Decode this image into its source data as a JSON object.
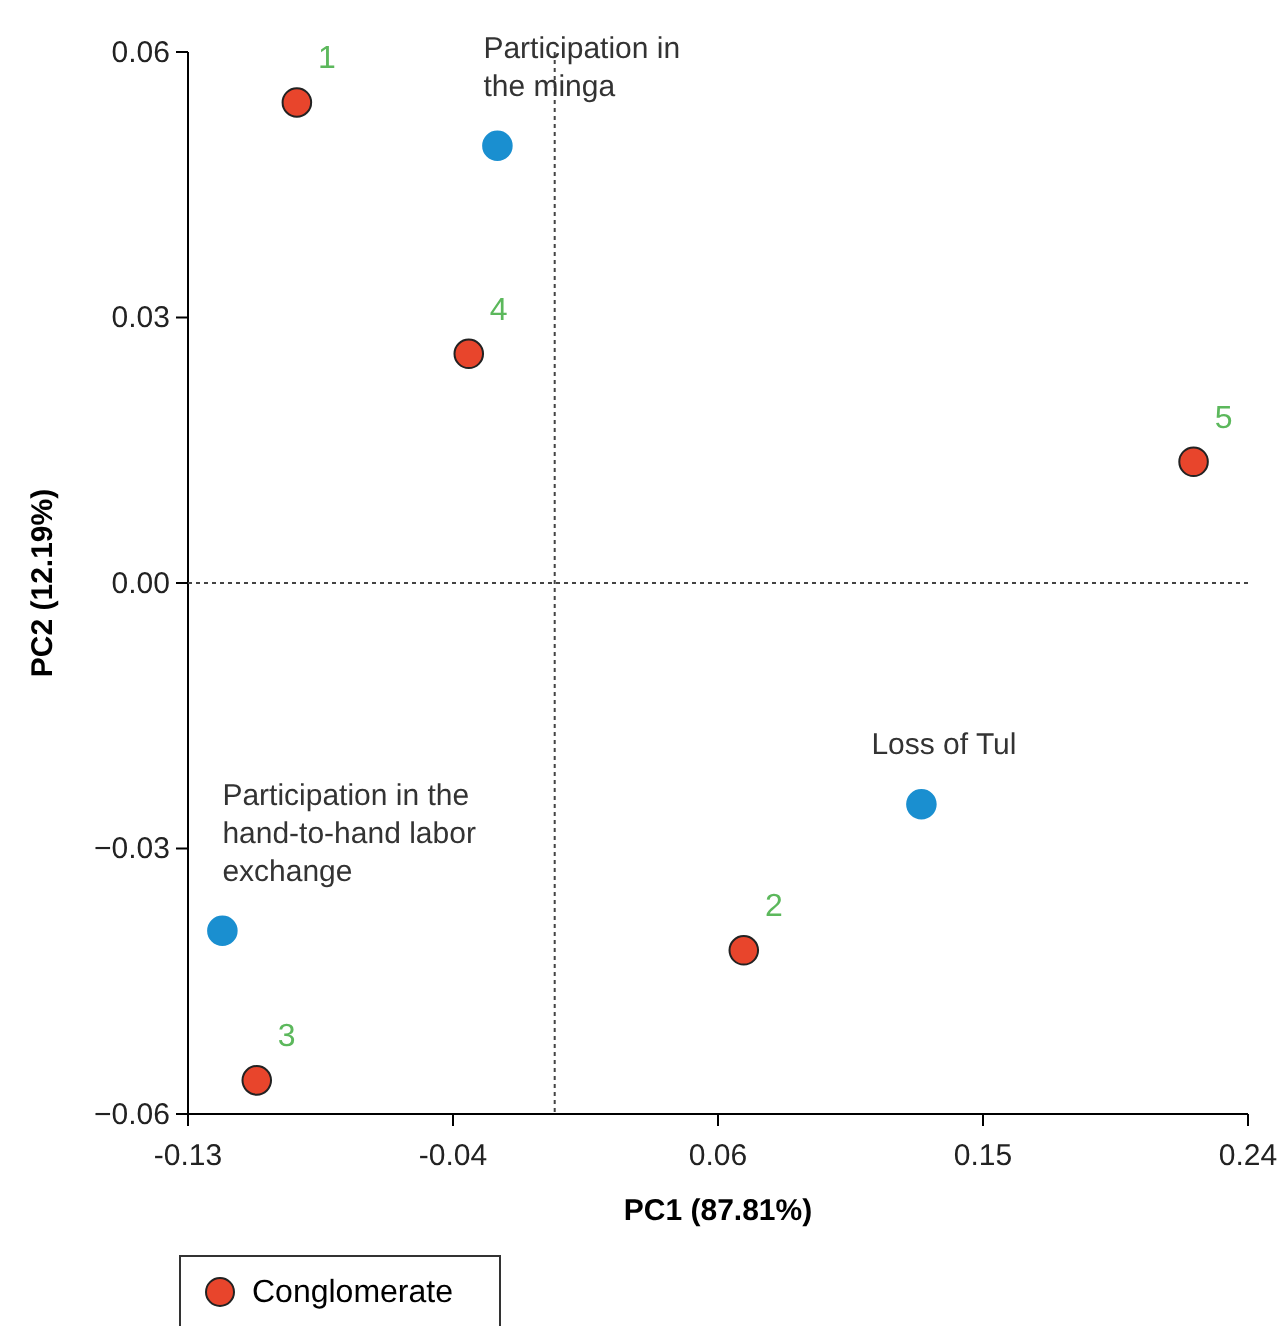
{
  "chart_data": {
    "type": "scatter",
    "xlabel": "PC1 (87.81%)",
    "ylabel": "PC2 (12.19%)",
    "xlim": [
      -0.13,
      0.24
    ],
    "xticks": [
      -0.13,
      {
        "value": -0.0375,
        "label": "-0.04"
      },
      {
        "value": 0.055,
        "label": "0.06"
      },
      {
        "value": 0.1475,
        "label": "0.15"
      },
      0.24
    ],
    "ylim": [
      -0.06,
      0.06
    ],
    "yticks": [
      {
        "value": -0.06,
        "label": "−0.06"
      },
      {
        "value": -0.03,
        "label": "−0.03"
      },
      {
        "value": 0,
        "label": "0.00"
      },
      {
        "value": 0.03,
        "label": "0.03"
      },
      {
        "value": 0.06,
        "label": "0.06"
      }
    ],
    "series": [
      {
        "name": "Conglomerate",
        "color": "#e8452c",
        "x": [
          -0.092,
          0.064,
          -0.106,
          -0.032,
          0.221
        ],
        "values": [
          0.0543,
          -0.0415,
          -0.0562,
          0.0259,
          0.0137
        ]
      },
      {
        "color": "#1a8fd0",
        "x": [
          -0.022,
          0.126,
          -0.118
        ],
        "values": [
          0.0494,
          -0.025,
          -0.0393
        ]
      }
    ],
    "marker": "circle",
    "ref_lines": [
      {
        "axis": "x",
        "value": -0.002,
        "line_style": "dotted"
      },
      {
        "axis": "y",
        "value": 0,
        "line_style": "dotted"
      }
    ],
    "annotations": [
      {
        "text": "1",
        "x": -0.092,
        "y": 0.0543
      },
      {
        "text": "2",
        "x": 0.064,
        "y": -0.0415
      },
      {
        "text": "3",
        "x": -0.106,
        "y": -0.0562
      },
      {
        "text": "4",
        "x": -0.032,
        "y": 0.0259
      },
      {
        "text": "5",
        "x": 0.221,
        "y": 0.0137
      },
      {
        "text": "Participation in\nthe minga",
        "x": -0.022,
        "y": 0.0494
      },
      {
        "text": "Loss of Tul",
        "x": 0.126,
        "y": -0.025
      },
      {
        "text": "Participation in the\nhand-to-hand labor\nexchange",
        "x": -0.118,
        "y": -0.0393
      }
    ],
    "grid": false,
    "legend": "bottom left"
  }
}
